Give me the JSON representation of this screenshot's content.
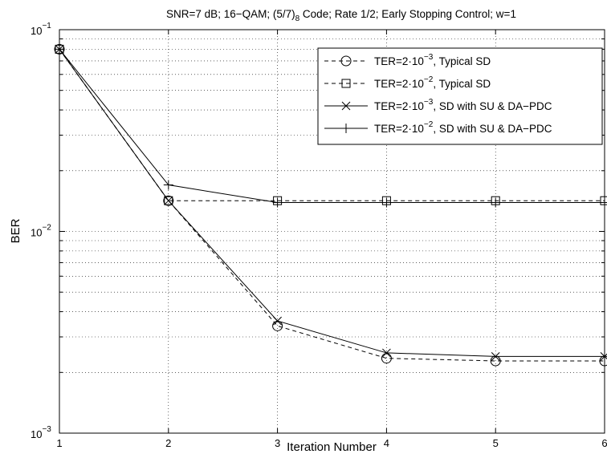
{
  "chart_data": {
    "type": "line",
    "title": "SNR=7 dB; 16−QAM;  (5/7)₈ Code; Rate 1/2; Early Stopping Control; w=1",
    "xlabel": "Iteration Number",
    "ylabel": "BER",
    "x": [
      1,
      2,
      3,
      4,
      5,
      6
    ],
    "xlim": [
      1,
      6
    ],
    "ylim": [
      0.001,
      0.1
    ],
    "yscale": "log",
    "grid": true,
    "legend_position": "top-right",
    "x_ticks": [
      "1",
      "2",
      "3",
      "4",
      "5",
      "6"
    ],
    "y_ticks": [
      {
        "base": "10",
        "exp": "−1",
        "value": 0.1
      },
      {
        "base": "10",
        "exp": "−2",
        "value": 0.01
      },
      {
        "base": "10",
        "exp": "−3",
        "value": 0.001
      }
    ],
    "series": [
      {
        "name_prefix": "TER=2·10",
        "name_exp": "−3",
        "name_suffix": ", Typical SD",
        "marker": "circle",
        "line": "dashed",
        "values": [
          0.08,
          0.0142,
          0.0034,
          0.00235,
          0.00228,
          0.00228
        ]
      },
      {
        "name_prefix": "TER=2·10",
        "name_exp": "−2",
        "name_suffix": ", Typical SD",
        "marker": "square",
        "line": "dashed",
        "values": [
          0.08,
          0.0142,
          0.0142,
          0.0142,
          0.0142,
          0.0142
        ]
      },
      {
        "name_prefix": "TER=2·10",
        "name_exp": "−3",
        "name_suffix": ", SD with SU & DA−PDC",
        "marker": "x",
        "line": "solid",
        "values": [
          0.08,
          0.0142,
          0.0036,
          0.0025,
          0.0024,
          0.0024
        ]
      },
      {
        "name_prefix": "TER=2·10",
        "name_exp": "−2",
        "name_suffix": ", SD with SU & DA−PDC",
        "marker": "plus",
        "line": "solid",
        "values": [
          0.08,
          0.017,
          0.0139,
          0.0139,
          0.0139,
          0.0139
        ]
      }
    ]
  }
}
